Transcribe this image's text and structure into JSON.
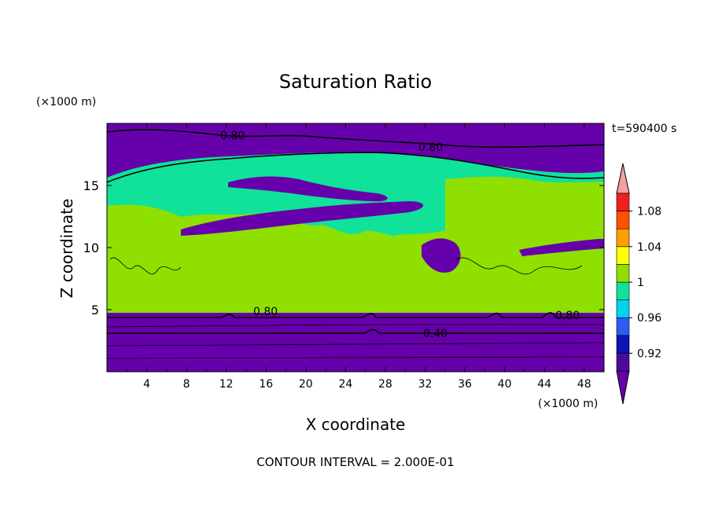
{
  "chart_data": {
    "type": "heatmap",
    "title": "Saturation Ratio",
    "xlabel": "X coordinate",
    "ylabel": "Z coordinate",
    "x_unit": "(×1000 m)",
    "y_unit": "(×1000 m)",
    "time_label": "t=590400 s",
    "footer": "CONTOUR INTERVAL = 2.000E-01",
    "xlim": [
      0,
      50
    ],
    "ylim": [
      0,
      20
    ],
    "x_ticks": [
      "4",
      "8",
      "12",
      "16",
      "20",
      "24",
      "28",
      "32",
      "36",
      "40",
      "44",
      "48"
    ],
    "x_tick_values": [
      4,
      8,
      12,
      16,
      20,
      24,
      28,
      32,
      36,
      40,
      44,
      48
    ],
    "y_ticks": [
      "5",
      "10",
      "15"
    ],
    "y_tick_values": [
      5,
      10,
      15
    ],
    "colorbar": {
      "labels": [
        "0.92",
        "0.96",
        "1",
        "1.04",
        "1.08"
      ],
      "label_values": [
        0.92,
        0.96,
        1.0,
        1.04,
        1.08
      ],
      "levels": [
        0.9,
        0.92,
        0.94,
        0.96,
        0.98,
        1.0,
        1.02,
        1.04,
        1.06,
        1.08,
        1.1
      ],
      "colors": [
        "#4b0a9a",
        "#0b14b4",
        "#2d5cf5",
        "#00d2f0",
        "#10e29a",
        "#8fe000",
        "#ffff00",
        "#ffa000",
        "#ff5000",
        "#f02020"
      ],
      "under_color": "#6600aa",
      "over_color": "#f4a0a0"
    },
    "contour_labels": [
      "0.80",
      "0.80",
      "0.80",
      "0.80",
      "0.40"
    ],
    "band_colors": {
      "dry": "#6600aa",
      "near_saturated": "#10e29a",
      "saturated": "#8fe000",
      "slightly_sub": "#00d2f0",
      "sub": "#2d5cf5"
    }
  }
}
